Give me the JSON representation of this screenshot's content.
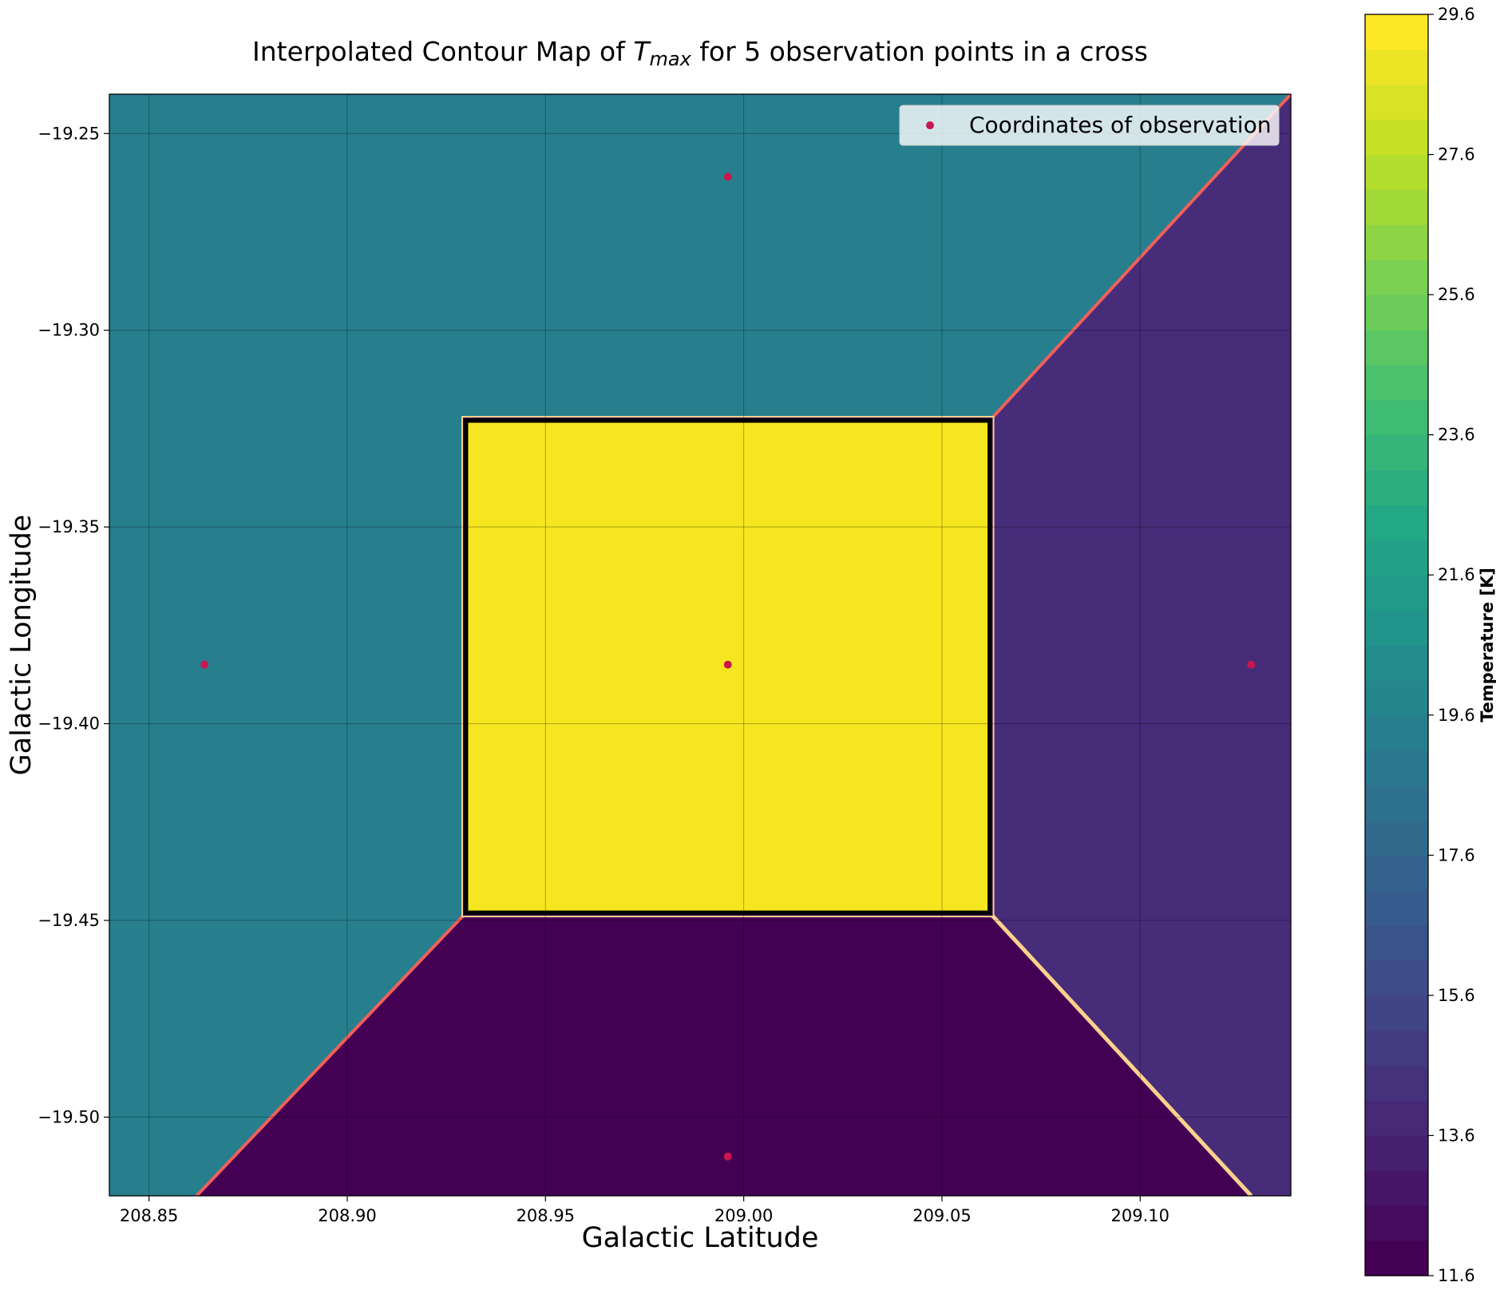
{
  "chart_data": {
    "type": "heatmap",
    "title_prefix": "Interpolated Contour Map of ",
    "title_symbol": "T",
    "title_subscript": "max",
    "title_suffix": " for 5 observation points in a cross",
    "xlabel": "Galactic Latitude",
    "ylabel": "Galactic Longitude",
    "xlim": [
      208.84,
      209.138
    ],
    "ylim": [
      -19.52,
      -19.24
    ],
    "x_ticks": [
      208.85,
      208.9,
      208.95,
      209.0,
      209.05,
      209.1
    ],
    "x_tick_labels": [
      "208.85",
      "208.90",
      "208.95",
      "209.00",
      "209.05",
      "209.10"
    ],
    "y_ticks": [
      -19.25,
      -19.3,
      -19.35,
      -19.4,
      -19.45,
      -19.5
    ],
    "y_tick_labels": [
      "−19.25",
      "−19.30",
      "−19.35",
      "−19.40",
      "−19.45",
      "−19.50"
    ],
    "grid": true,
    "legend_position": "upper-right",
    "legend_label": "Coordinates of observation",
    "points": [
      {
        "x": 208.996,
        "y": -19.261
      },
      {
        "x": 208.864,
        "y": -19.385
      },
      {
        "x": 208.996,
        "y": -19.385
      },
      {
        "x": 209.128,
        "y": -19.385
      },
      {
        "x": 208.996,
        "y": -19.51
      }
    ],
    "regions": [
      {
        "name": "left-top",
        "temperature": 19.6,
        "color": "#277f8e"
      },
      {
        "name": "right",
        "temperature": 14.0,
        "color": "#472c7a"
      },
      {
        "name": "bottom",
        "temperature": 11.8,
        "color": "#440154"
      },
      {
        "name": "center",
        "temperature": 29.6,
        "color": "#f5e61f"
      }
    ],
    "center_box": {
      "x0": 208.93,
      "x1": 209.062,
      "y0": -19.448,
      "y1": -19.323
    },
    "colorbar": {
      "label": "Temperature [K]",
      "min": 11.6,
      "max": 29.6,
      "ticks": [
        11.6,
        13.6,
        15.6,
        17.6,
        19.6,
        21.6,
        23.6,
        25.6,
        27.6,
        29.6
      ],
      "tick_labels": [
        "11.6",
        "13.6",
        "15.6",
        "17.6",
        "19.6",
        "21.6",
        "23.6",
        "25.6",
        "27.6",
        "29.6"
      ],
      "levels": 36
    },
    "point_color": "#c8174f",
    "boundary_colors": {
      "red": "#f0605a",
      "cream": "#fcd28d",
      "dark": "#000000"
    }
  }
}
